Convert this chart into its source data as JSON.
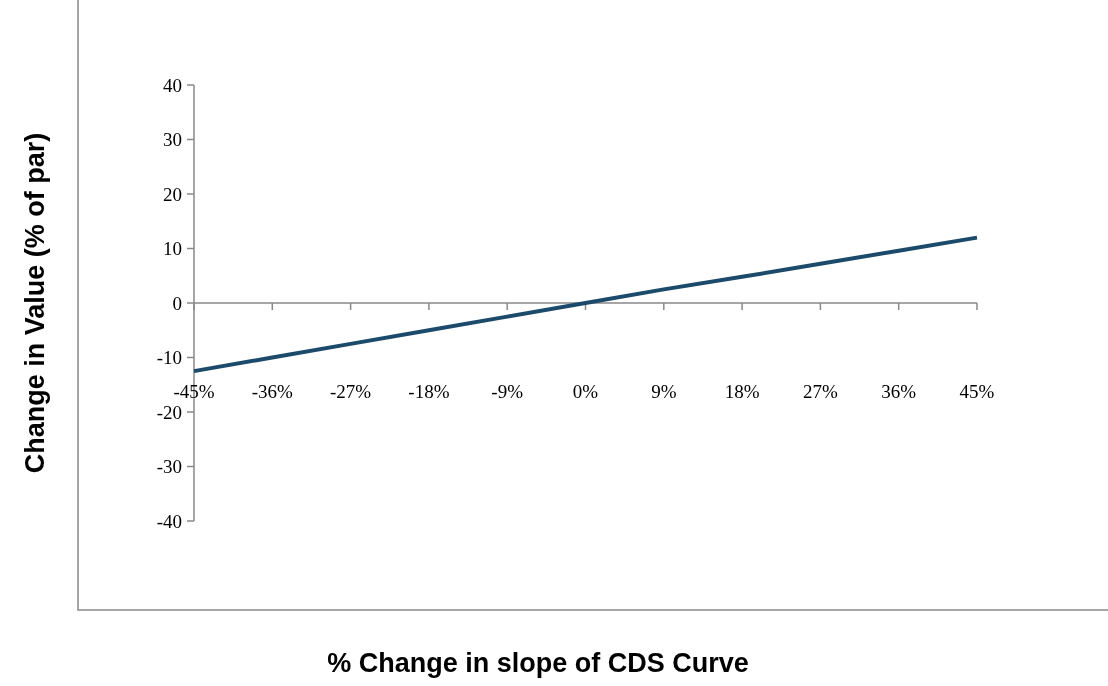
{
  "chart_data": {
    "type": "line",
    "xlabel": "% Change in slope of CDS Curve",
    "ylabel": "Change in Value (% of par)",
    "categories": [
      "-45%",
      "-36%",
      "-27%",
      "-18%",
      "-9%",
      "0%",
      "9%",
      "18%",
      "27%",
      "36%",
      "45%"
    ],
    "series": [
      {
        "color": "#1b4a6b",
        "values": [
          -12.5,
          -10,
          -7.5,
          -5,
          -2.5,
          0,
          2.5,
          4.8,
          7.2,
          9.6,
          12
        ]
      }
    ],
    "ylim": [
      -40,
      40
    ],
    "yticks": [
      -40,
      -30,
      -20,
      -10,
      0,
      10,
      20,
      30,
      40
    ],
    "marker": "none",
    "line_style": "solid"
  }
}
